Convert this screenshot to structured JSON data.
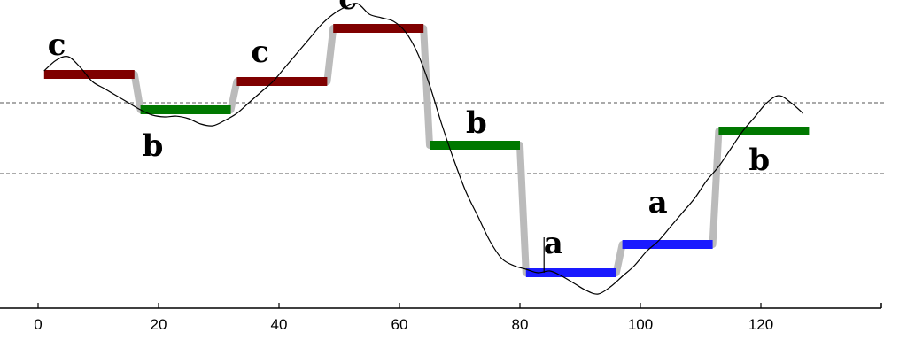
{
  "chart_data": {
    "type": "line",
    "xlim": [
      0,
      140
    ],
    "ylim": [
      -5.0,
      4.0
    ],
    "x_ticks": [
      0,
      20,
      40,
      60,
      80,
      100,
      120
    ],
    "grid": false,
    "threshold_lines": [
      1.0,
      -1.0
    ],
    "symbol_colors": {
      "a": "#1a1aff",
      "b": "#007800",
      "c": "#7f0000"
    },
    "step_color": "#bbbbbb",
    "segments": [
      {
        "symbol": "c",
        "x_start": 1,
        "x_end": 16,
        "y": 1.8
      },
      {
        "symbol": "b",
        "x_start": 17,
        "x_end": 32,
        "y": 0.8
      },
      {
        "symbol": "c",
        "x_start": 33,
        "x_end": 48,
        "y": 1.6
      },
      {
        "symbol": "c",
        "x_start": 49,
        "x_end": 64,
        "y": 3.1
      },
      {
        "symbol": "b",
        "x_start": 65,
        "x_end": 80,
        "y": -0.2
      },
      {
        "symbol": "a",
        "x_start": 81,
        "x_end": 96,
        "y": -3.8
      },
      {
        "symbol": "a",
        "x_start": 97,
        "x_end": 112,
        "y": -3.0
      },
      {
        "symbol": "b",
        "x_start": 113,
        "x_end": 128,
        "y": 0.2
      }
    ],
    "series": [
      {
        "x": [
          1,
          3,
          5,
          7,
          9,
          11,
          13,
          15,
          17,
          19,
          21,
          23,
          25,
          27,
          29,
          31,
          33,
          35,
          37,
          39,
          41,
          43,
          45,
          47,
          49,
          51,
          53,
          55,
          57,
          59,
          61,
          63,
          65,
          67,
          69,
          71,
          73,
          75,
          77,
          79,
          81,
          83,
          85,
          87,
          89,
          91,
          93,
          95,
          97,
          99,
          101,
          103,
          105,
          107,
          109,
          111,
          113,
          115,
          117,
          119,
          121,
          123,
          125,
          127
        ],
        "y": [
          1.9,
          2.2,
          2.3,
          2.0,
          1.6,
          1.4,
          1.2,
          1.0,
          0.8,
          0.65,
          0.6,
          0.62,
          0.55,
          0.4,
          0.35,
          0.5,
          0.7,
          1.0,
          1.3,
          1.6,
          2.0,
          2.4,
          2.8,
          3.2,
          3.5,
          3.7,
          3.8,
          3.5,
          3.4,
          3.3,
          3.0,
          2.4,
          1.5,
          0.4,
          -0.6,
          -1.5,
          -2.2,
          -2.9,
          -3.4,
          -3.6,
          -3.7,
          -3.8,
          -3.75,
          -3.9,
          -4.1,
          -4.3,
          -4.4,
          -4.2,
          -3.9,
          -3.6,
          -3.2,
          -2.9,
          -2.5,
          -2.1,
          -1.7,
          -1.2,
          -0.8,
          -0.3,
          0.2,
          0.6,
          1.0,
          1.2,
          1.0,
          0.7
        ]
      }
    ],
    "marker": {
      "x": 84,
      "y_top": -2.8,
      "y_bottom": -3.8
    }
  }
}
